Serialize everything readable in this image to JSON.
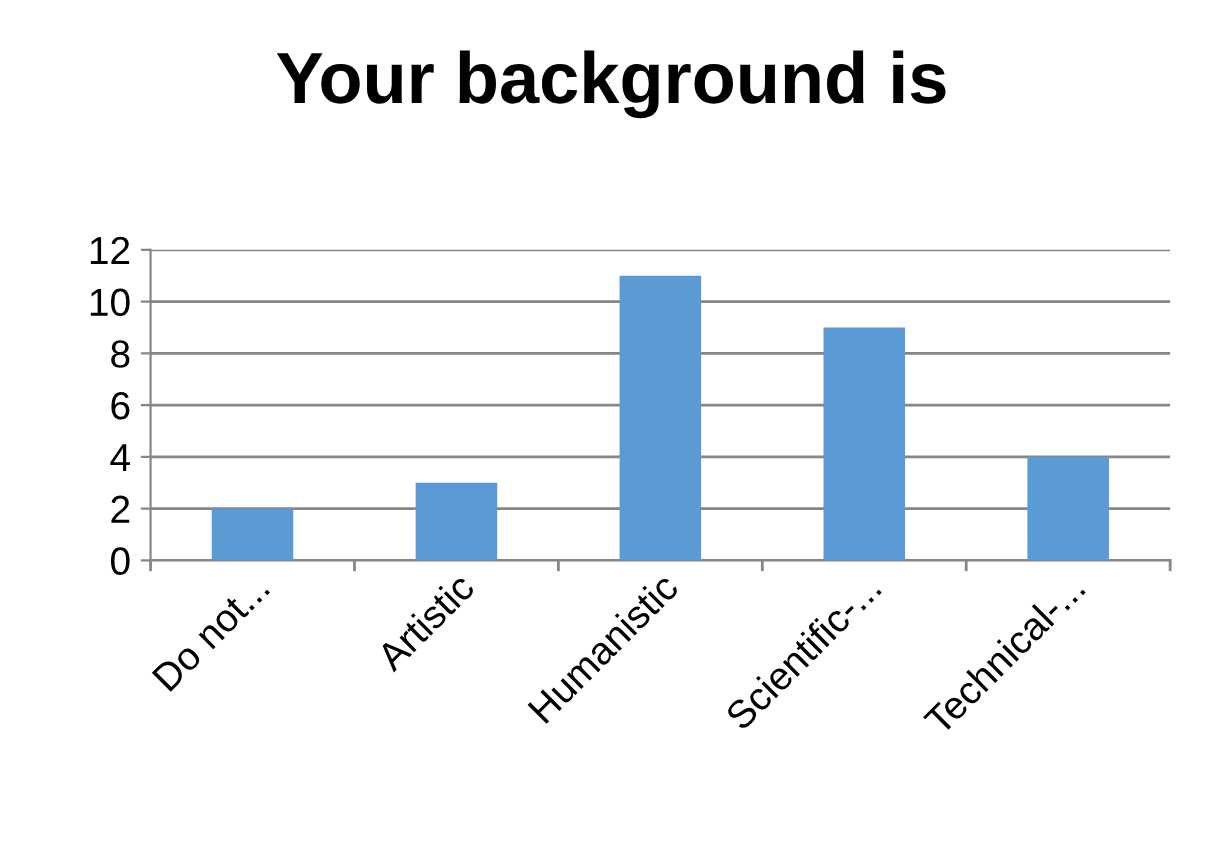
{
  "chart_data": {
    "type": "bar",
    "title": "Your background is",
    "categories": [
      "Do not...",
      "Artistic",
      "Humanistic",
      "Scientific-...",
      "Technical-..."
    ],
    "values": [
      2,
      3,
      11,
      9,
      4
    ],
    "color": "#5b9bd5",
    "ylim": [
      0,
      12
    ],
    "yticks": [
      0,
      2,
      4,
      6,
      8,
      10,
      12
    ],
    "grid": "y",
    "legend": false
  }
}
